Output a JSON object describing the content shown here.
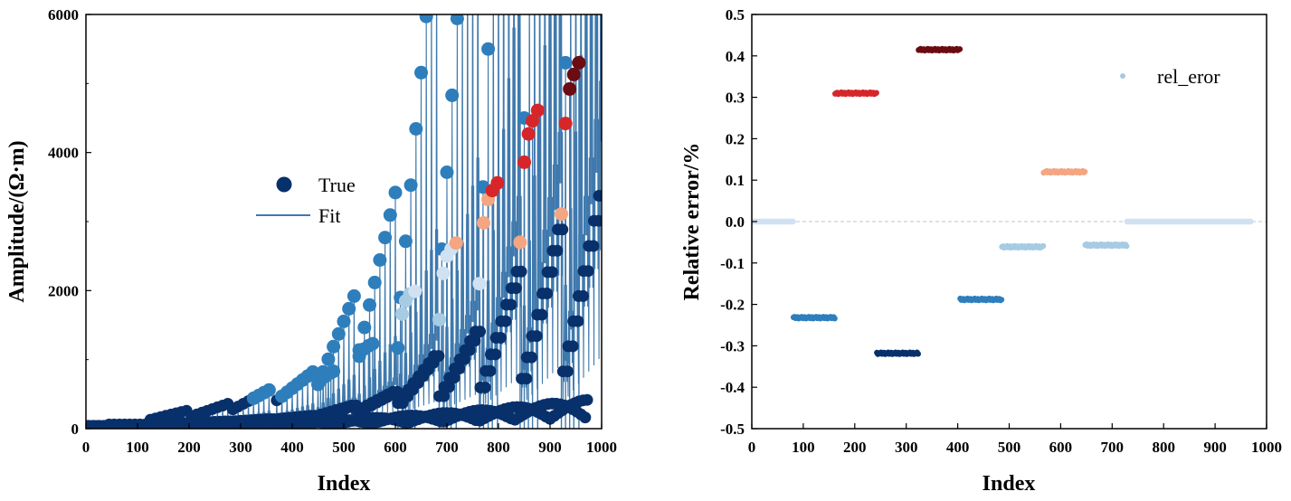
{
  "colors": {
    "navy": "#08306b",
    "mid_blue": "#2e7ebc",
    "light_blue": "#a6cbe3",
    "pale_blue": "#d0e1f2",
    "salmon": "#f4a582",
    "red": "#d6262a",
    "dark_red": "#6b0b12",
    "fit_line": "#3f79ad",
    "zero_line": "#b9c6d2"
  },
  "chart_data": [
    {
      "type": "scatter",
      "title": "",
      "xlabel": "Index",
      "ylabel": "Amplitude/(Ω·m)",
      "xlim": [
        0,
        1000
      ],
      "ylim": [
        0,
        6000
      ],
      "xticks": [
        "0",
        "100",
        "200",
        "300",
        "400",
        "500",
        "600",
        "700",
        "800",
        "900",
        "1000"
      ],
      "yticks": [
        "0",
        "2000",
        "4000",
        "6000"
      ],
      "legend": {
        "position": "center-left",
        "entries": [
          "True",
          "Fit"
        ]
      },
      "series": [
        {
          "name": "True",
          "marker": "circle"
        },
        {
          "name": "Fit",
          "marker": "line"
        }
      ],
      "groups": [
        {
          "x0": 0,
          "n": 8,
          "fmax": 1,
          "lo": 40,
          "base": 28
        },
        {
          "x0": 40,
          "n": 8,
          "fmax": 1,
          "lo": 60,
          "base": 40
        },
        {
          "x0": 120,
          "n": 8,
          "fmax": 2,
          "lo": 130,
          "base": 55
        },
        {
          "x0": 200,
          "n": 8,
          "fmax": 2,
          "lo": 180,
          "base": 70
        },
        {
          "x0": 280,
          "n": 8,
          "fmax": 2,
          "lo": 280,
          "base": 80
        },
        {
          "x0": 365,
          "n": 8,
          "fmax": 2,
          "lo": 410,
          "base": 100
        },
        {
          "x0": 445,
          "n": 8,
          "fmax": 3,
          "lo": 640,
          "base": 120
        },
        {
          "x0": 525,
          "n": 8,
          "fmax": 3,
          "lo": 1140,
          "base": 140
        },
        {
          "x0": 605,
          "n": 8,
          "fmax": 4,
          "lo": 1900,
          "base": 160
        },
        {
          "x0": 685,
          "n": 8,
          "fmax": 4,
          "lo": 2600,
          "base": 180
        },
        {
          "x0": 765,
          "n": 8,
          "fmax": 5,
          "lo": 3500,
          "base": 200
        },
        {
          "x0": 845,
          "n": 8,
          "fmax": 5,
          "lo": 4500,
          "base": 210
        },
        {
          "x0": 925,
          "n": 8,
          "fmax": 5,
          "lo": 5300,
          "base": 220
        }
      ],
      "peaks": [
        {
          "x": 455,
          "y": 700,
          "c": "mid_blue"
        },
        {
          "x": 465,
          "y": 760,
          "c": "mid_blue"
        },
        {
          "x": 475,
          "y": 810,
          "c": "mid_blue"
        },
        {
          "x": 480,
          "y": 830,
          "c": "mid_blue"
        },
        {
          "x": 530,
          "y": 1050,
          "c": "mid_blue"
        },
        {
          "x": 538,
          "y": 1150,
          "c": "mid_blue"
        },
        {
          "x": 548,
          "y": 1200,
          "c": "mid_blue"
        },
        {
          "x": 556,
          "y": 1230,
          "c": "mid_blue"
        },
        {
          "x": 605,
          "y": 1170,
          "c": "mid_blue"
        },
        {
          "x": 613,
          "y": 1660,
          "c": "light_blue"
        },
        {
          "x": 620,
          "y": 1850,
          "c": "light_blue"
        },
        {
          "x": 628,
          "y": 1950,
          "c": "light_blue"
        },
        {
          "x": 638,
          "y": 1990,
          "c": "pale_blue"
        },
        {
          "x": 685,
          "y": 1580,
          "c": "light_blue"
        },
        {
          "x": 693,
          "y": 2250,
          "c": "pale_blue"
        },
        {
          "x": 700,
          "y": 2500,
          "c": "pale_blue"
        },
        {
          "x": 708,
          "y": 2600,
          "c": "pale_blue"
        },
        {
          "x": 718,
          "y": 2690,
          "c": "salmon"
        },
        {
          "x": 763,
          "y": 2100,
          "c": "pale_blue"
        },
        {
          "x": 771,
          "y": 2980,
          "c": "salmon"
        },
        {
          "x": 780,
          "y": 3320,
          "c": "salmon"
        },
        {
          "x": 788,
          "y": 3450,
          "c": "red"
        },
        {
          "x": 798,
          "y": 3560,
          "c": "red"
        },
        {
          "x": 842,
          "y": 2700,
          "c": "salmon"
        },
        {
          "x": 850,
          "y": 3860,
          "c": "red"
        },
        {
          "x": 858,
          "y": 4270,
          "c": "red"
        },
        {
          "x": 866,
          "y": 4460,
          "c": "red"
        },
        {
          "x": 876,
          "y": 4610,
          "c": "red"
        },
        {
          "x": 922,
          "y": 3110,
          "c": "salmon"
        },
        {
          "x": 930,
          "y": 4420,
          "c": "red"
        },
        {
          "x": 938,
          "y": 4920,
          "c": "dark_red"
        },
        {
          "x": 946,
          "y": 5130,
          "c": "dark_red"
        },
        {
          "x": 956,
          "y": 5300,
          "c": "dark_red"
        }
      ]
    },
    {
      "type": "scatter",
      "title": "",
      "xlabel": "Index",
      "ylabel": "Relative error/%",
      "xlim": [
        0,
        1000
      ],
      "ylim": [
        -0.5,
        0.5
      ],
      "xticks": [
        "0",
        "100",
        "200",
        "300",
        "400",
        "500",
        "600",
        "700",
        "800",
        "900",
        "1000"
      ],
      "yticks": [
        "-0.5",
        "-0.4",
        "-0.3",
        "-0.2",
        "-0.1",
        "0.0",
        "0.1",
        "0.2",
        "0.3",
        "0.4",
        "0.5"
      ],
      "legend": {
        "position": "top-right",
        "entries": [
          "rel_eror"
        ]
      },
      "series": [
        {
          "name": "rel_eror",
          "segments": [
            {
              "x_start": 0,
              "x_end": 81,
              "value": 0.0,
              "c": "pale_blue"
            },
            {
              "x_start": 81,
              "x_end": 162,
              "value": -0.232,
              "c": "mid_blue"
            },
            {
              "x_start": 162,
              "x_end": 243,
              "value": 0.31,
              "c": "red"
            },
            {
              "x_start": 243,
              "x_end": 324,
              "value": -0.318,
              "c": "navy"
            },
            {
              "x_start": 324,
              "x_end": 405,
              "value": 0.415,
              "c": "dark_red"
            },
            {
              "x_start": 405,
              "x_end": 486,
              "value": -0.188,
              "c": "mid_blue"
            },
            {
              "x_start": 486,
              "x_end": 567,
              "value": -0.061,
              "c": "light_blue"
            },
            {
              "x_start": 567,
              "x_end": 648,
              "value": 0.12,
              "c": "salmon"
            },
            {
              "x_start": 648,
              "x_end": 729,
              "value": -0.057,
              "c": "light_blue"
            },
            {
              "x_start": 729,
              "x_end": 970,
              "value": 0.0,
              "c": "pale_blue"
            }
          ]
        }
      ]
    }
  ]
}
